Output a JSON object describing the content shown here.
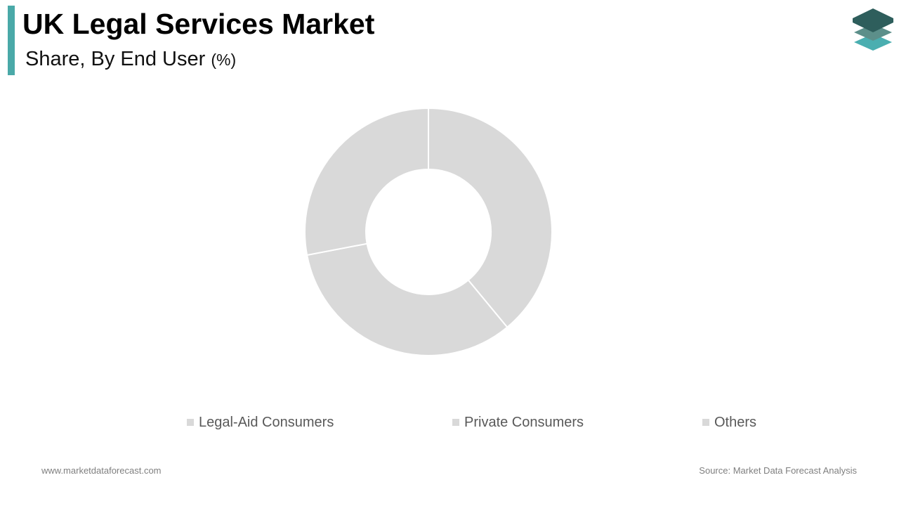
{
  "header": {
    "title": "UK Legal Services Market",
    "subtitle": "Share, By End User",
    "subtitle_unit": "(%)",
    "accent_color": "#4aa9a8"
  },
  "logo": {
    "icon": "stacked-layers-logo",
    "colors": [
      "#2e5e5c",
      "#5c8f8a",
      "#4aaeb0"
    ]
  },
  "chart_data": {
    "type": "pie",
    "variant": "donut",
    "categories": [
      "Legal-Aid Consumers",
      "Private Consumers",
      "Others"
    ],
    "values": [
      39,
      33,
      28
    ],
    "colors": [
      "#d9d9d9",
      "#d9d9d9",
      "#d9d9d9"
    ],
    "legend_position": "bottom",
    "data_labels": false
  },
  "footer": {
    "website": "www.marketdataforecast.com",
    "source": "Source: Market Data Forecast Analysis"
  }
}
